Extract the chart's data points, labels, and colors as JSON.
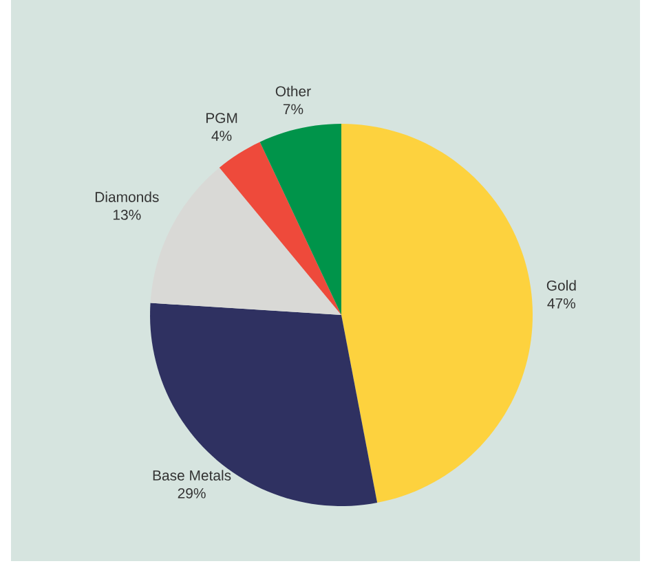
{
  "chart_data": {
    "type": "pie",
    "categories": [
      "Gold",
      "Base Metals",
      "Diamonds",
      "PGM",
      "Other"
    ],
    "values": [
      47,
      29,
      13,
      4,
      7
    ],
    "value_labels": [
      "47%",
      "29%",
      "13%",
      "4%",
      "7%"
    ],
    "colors": [
      "#fdd23e",
      "#2f3161",
      "#d9d9d6",
      "#ee4a3b",
      "#00944a"
    ]
  }
}
